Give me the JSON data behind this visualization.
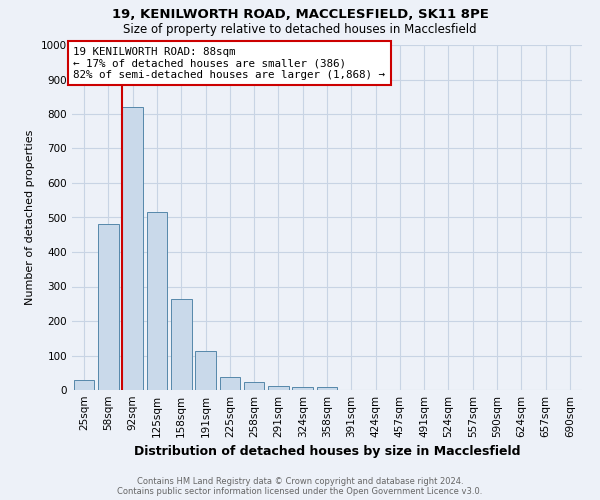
{
  "title1": "19, KENILWORTH ROAD, MACCLESFIELD, SK11 8PE",
  "title2": "Size of property relative to detached houses in Macclesfield",
  "xlabel": "Distribution of detached houses by size in Macclesfield",
  "ylabel": "Number of detached properties",
  "footnote": "Contains HM Land Registry data © Crown copyright and database right 2024.\nContains public sector information licensed under the Open Government Licence v3.0.",
  "categories": [
    "25sqm",
    "58sqm",
    "92sqm",
    "125sqm",
    "158sqm",
    "191sqm",
    "225sqm",
    "258sqm",
    "291sqm",
    "324sqm",
    "358sqm",
    "391sqm",
    "424sqm",
    "457sqm",
    "491sqm",
    "524sqm",
    "557sqm",
    "590sqm",
    "624sqm",
    "657sqm",
    "690sqm"
  ],
  "values": [
    30,
    480,
    820,
    515,
    265,
    112,
    38,
    22,
    12,
    8,
    8,
    0,
    0,
    0,
    0,
    0,
    0,
    0,
    0,
    0,
    0
  ],
  "bar_color": "#c9d9ea",
  "bar_edge_color": "#5588aa",
  "grid_color": "#c8d4e4",
  "red_line_index": 2,
  "annotation_line1": "19 KENILWORTH ROAD: 88sqm",
  "annotation_line2": "← 17% of detached houses are smaller (386)",
  "annotation_line3": "82% of semi-detached houses are larger (1,868) →",
  "annotation_box_color": "#ffffff",
  "annotation_box_edge": "#cc0000",
  "annotation_text_color": "#000000",
  "red_line_color": "#cc0000",
  "ylim": [
    0,
    1000
  ],
  "yticks": [
    0,
    100,
    200,
    300,
    400,
    500,
    600,
    700,
    800,
    900,
    1000
  ],
  "background_color": "#edf1f8",
  "title1_fontsize": 9.5,
  "title2_fontsize": 8.5,
  "xlabel_fontsize": 9,
  "ylabel_fontsize": 8,
  "tick_fontsize": 7.5,
  "footnote_fontsize": 6
}
